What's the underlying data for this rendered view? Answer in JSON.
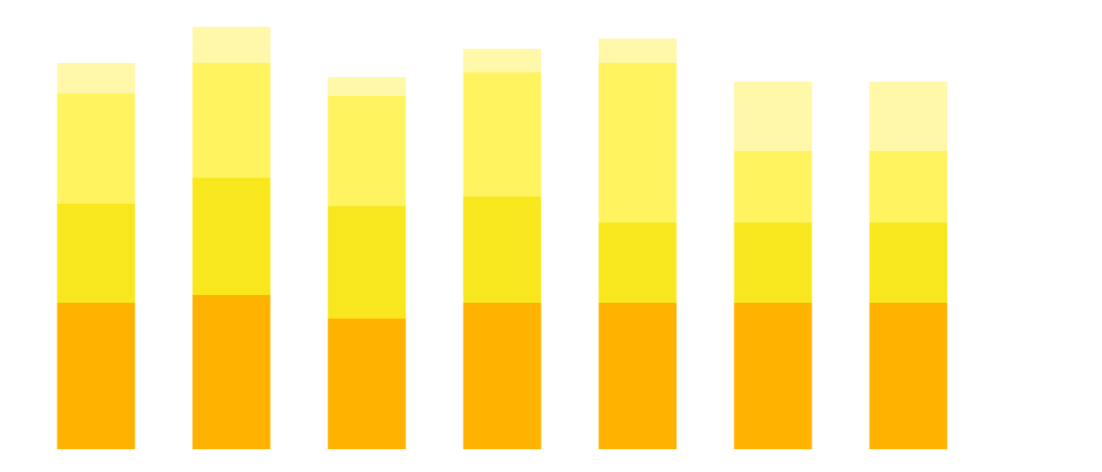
{
  "chart_data": {
    "type": "stacked_bar",
    "ylim": [
      0,
      571
    ],
    "series": [
      {
        "color": "#ffb300",
        "values": [
          186,
          196,
          166,
          186,
          186,
          186,
          186
        ]
      },
      {
        "color": "#f8e71c",
        "values": [
          126,
          149,
          143,
          135,
          102,
          102,
          102
        ]
      },
      {
        "color": "#fff35f",
        "values": [
          140,
          146,
          140,
          158,
          203,
          91,
          91
        ]
      },
      {
        "color": "#fff8a8",
        "values": [
          39,
          46,
          24,
          30,
          31,
          88,
          88
        ]
      }
    ]
  }
}
